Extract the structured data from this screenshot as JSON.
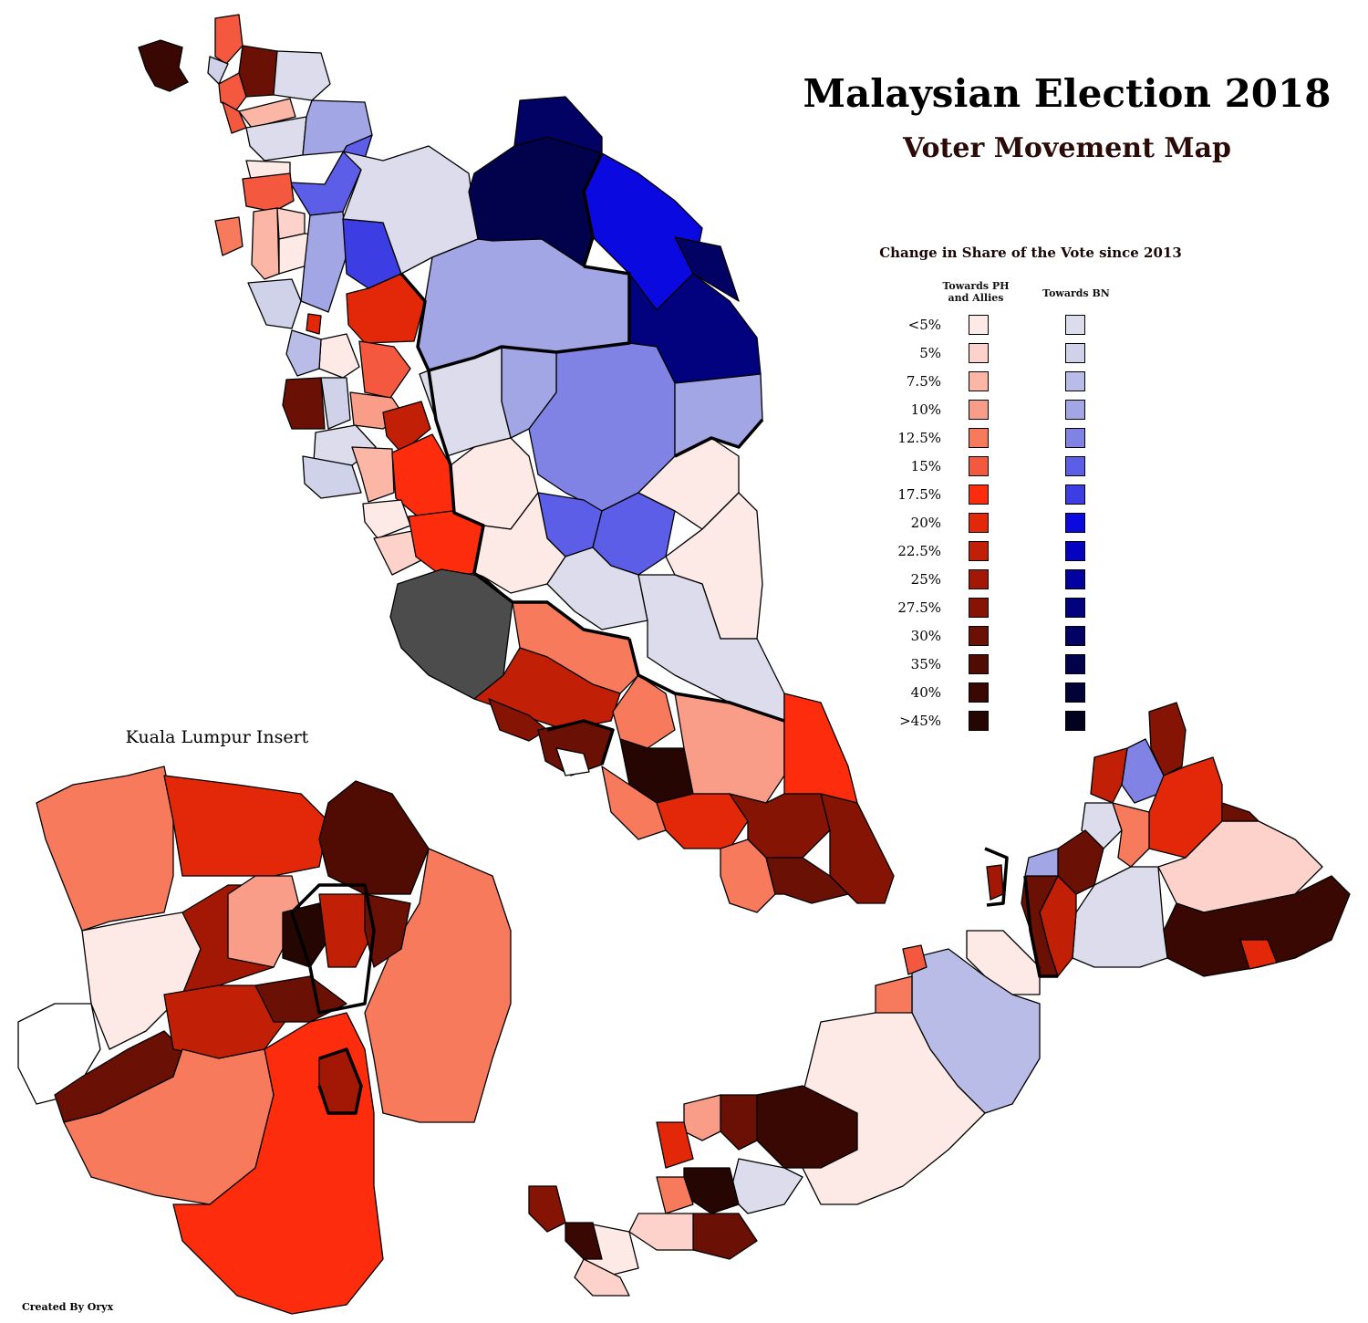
{
  "title": "Malaysian Election 2018",
  "subtitle": "Voter Movement Map",
  "legend": {
    "heading": "Change in Share of the Vote since 2013",
    "ph_heading_line1": "Towards PH",
    "ph_heading_line2": "and Allies",
    "bn_heading": "Towards BN",
    "rows": [
      {
        "label": "<5%",
        "ph_color": "#fdeae6",
        "bn_color": "#dcdcec"
      },
      {
        "label": "5%",
        "ph_color": "#fcd2ca",
        "bn_color": "#d0d2ea"
      },
      {
        "label": "7.5%",
        "ph_color": "#fbb6a6",
        "bn_color": "#b8bce6"
      },
      {
        "label": "10%",
        "ph_color": "#f99c88",
        "bn_color": "#a2a6e4"
      },
      {
        "label": "12.5%",
        "ph_color": "#f77a5c",
        "bn_color": "#8082e4"
      },
      {
        "label": "15%",
        "ph_color": "#f4583e",
        "bn_color": "#5c5ee8"
      },
      {
        "label": "17.5%",
        "ph_color": "#fc2c0c",
        "bn_color": "#3c3ee4"
      },
      {
        "label": "20%",
        "ph_color": "#e22808",
        "bn_color": "#0a0ae0"
      },
      {
        "label": "22.5%",
        "ph_color": "#c22006",
        "bn_color": "#0404c0"
      },
      {
        "label": "25%",
        "ph_color": "#a21804",
        "bn_color": "#0202a0"
      },
      {
        "label": "27.5%",
        "ph_color": "#861404",
        "bn_color": "#02027e"
      },
      {
        "label": "30%",
        "ph_color": "#6a1004",
        "bn_color": "#020264"
      },
      {
        "label": "35%",
        "ph_color": "#500c02",
        "bn_color": "#02024c"
      },
      {
        "label": "40%",
        "ph_color": "#3a0802",
        "bn_color": "#020236"
      },
      {
        "label": ">45%",
        "ph_color": "#260602",
        "bn_color": "#02021e"
      }
    ]
  },
  "insert_label": "Kuala Lumpur Insert",
  "credit": "Created By Oryx",
  "colors": {
    "no_contest": "#4c4c4c",
    "border": "#000000",
    "background": "#ffffff"
  }
}
